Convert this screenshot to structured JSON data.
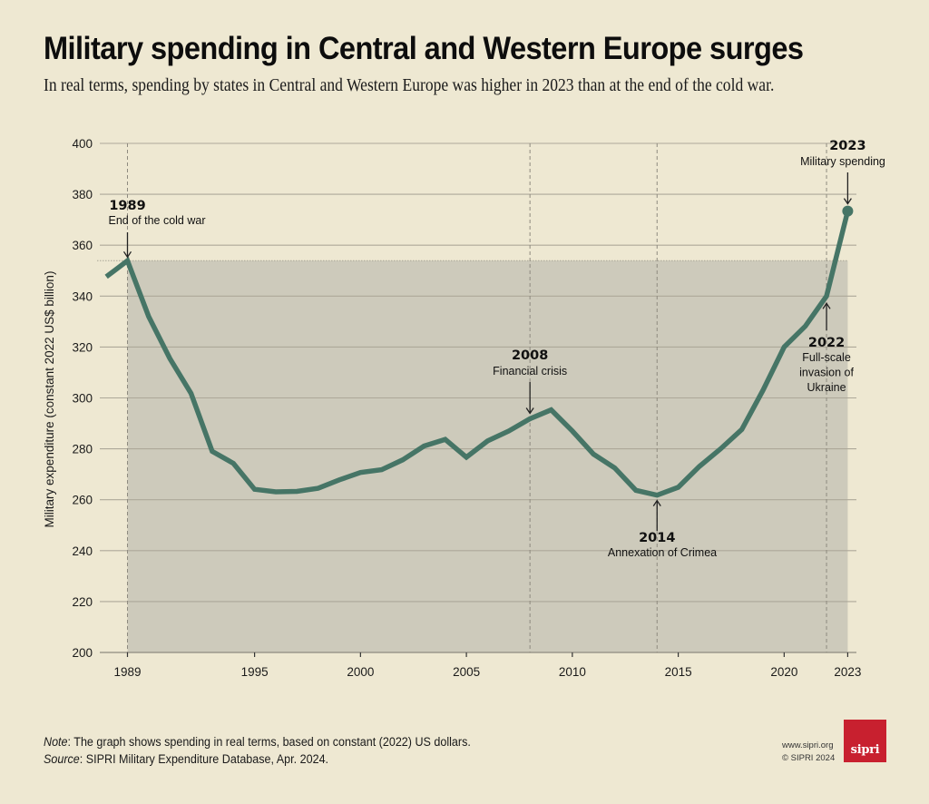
{
  "header": {
    "title": "Military spending in Central and Western Europe surges",
    "subtitle": "In real terms, spending by states in Central and Western Europe was higher in 2023 than at the end of the cold war."
  },
  "chart_data": {
    "type": "line",
    "title": "Military spending in Central and Western Europe surges",
    "xlabel": "",
    "ylabel": "Military expenditure (constant 2022 US$ billion)",
    "xlim": [
      1988,
      2023
    ],
    "ylim": [
      200,
      400
    ],
    "grid": true,
    "y_ticks": [
      200,
      220,
      240,
      260,
      280,
      300,
      320,
      340,
      360,
      380,
      400
    ],
    "x_ticks": [
      1989,
      1995,
      2000,
      2005,
      2010,
      2015,
      2020,
      2023
    ],
    "series": [
      {
        "name": "Military spending",
        "color": "#467566",
        "x": [
          1988,
          1989,
          1990,
          1991,
          1992,
          1993,
          1994,
          1995,
          1996,
          1997,
          1998,
          1999,
          2000,
          2001,
          2002,
          2003,
          2004,
          2005,
          2006,
          2007,
          2008,
          2009,
          2010,
          2011,
          2012,
          2013,
          2014,
          2015,
          2016,
          2017,
          2018,
          2019,
          2020,
          2021,
          2022,
          2023
        ],
        "values": [
          347.6,
          353.9,
          332.0,
          315.5,
          301.8,
          279.0,
          274.3,
          264.1,
          263.1,
          263.3,
          264.5,
          267.8,
          270.7,
          271.8,
          275.7,
          281.1,
          283.7,
          276.7,
          283.1,
          287.0,
          291.8,
          295.3,
          287.0,
          277.9,
          272.5,
          263.7,
          261.8,
          264.9,
          273.1,
          280.0,
          287.6,
          303.0,
          320.0,
          328.2,
          340.0,
          373.4
        ]
      }
    ],
    "shaded_region": {
      "from_year": 1989,
      "to_year": 2023,
      "level": 353.9,
      "color": "#cdcabb"
    },
    "reference_lines": [
      1989,
      2008,
      2014,
      2022
    ],
    "annotations": [
      {
        "year": "1989",
        "text": "End of the cold war",
        "x": 1989,
        "y": 353.9,
        "arrow": "down"
      },
      {
        "year": "2008",
        "text": "Financial crisis",
        "x": 2008,
        "y": 291.8,
        "arrow": "down"
      },
      {
        "year": "2014",
        "text": "Annexation of Crimea",
        "x": 2014,
        "y": 261.8,
        "arrow": "up"
      },
      {
        "year": "2022",
        "text": "Full-scale invasion of Ukraine",
        "lines": [
          "Full-scale",
          "invasion of",
          "Ukraine"
        ],
        "x": 2022,
        "y": 340.0,
        "arrow": "up"
      },
      {
        "year": "2023",
        "text": "Military spending",
        "x": 2023,
        "y": 373.4,
        "arrow": "down"
      }
    ]
  },
  "footer": {
    "note_label": "Note",
    "note_text": ": The graph shows spending in real terms, based on constant (2022) US dollars.",
    "source_label": "Source",
    "source_text": ": SIPRI Military Expenditure Database, Apr. 2024.",
    "website": "www.sipri.org",
    "copyright": "© SIPRI 2024",
    "logo_text": "sipri",
    "logo_color": "#c8202f"
  }
}
